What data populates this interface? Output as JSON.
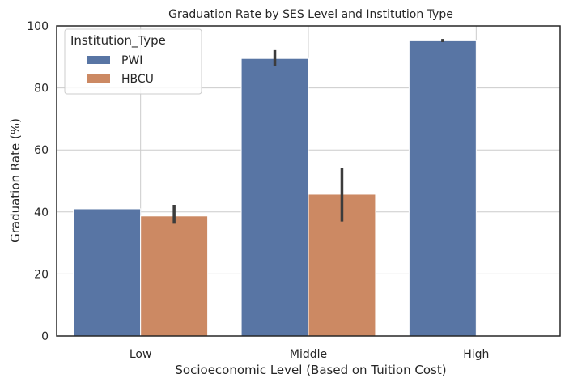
{
  "chart_data": {
    "type": "bar",
    "title": "Graduation Rate by SES Level and Institution Type",
    "xlabel": "Socioeconomic Level (Based on Tuition Cost)",
    "ylabel": "Graduation Rate (%)",
    "categories": [
      "Low",
      "Middle",
      "High"
    ],
    "ylim": [
      0,
      100
    ],
    "yticks": [
      0,
      20,
      40,
      60,
      80,
      100
    ],
    "grid": true,
    "legend": {
      "title": "Institution_Type",
      "placement": "top-left"
    },
    "series": [
      {
        "name": "PWI",
        "color": "#5875a4",
        "values": [
          41,
          89.5,
          95.2
        ],
        "ci_low": [
          null,
          87,
          94.8
        ],
        "ci_high": [
          null,
          92.2,
          95.8
        ]
      },
      {
        "name": "HBCU",
        "color": "#cc8963",
        "values": [
          38.7,
          45.7,
          null
        ],
        "ci_low": [
          36.2,
          36.9,
          null
        ],
        "ci_high": [
          42.3,
          54.3,
          null
        ]
      }
    ]
  }
}
